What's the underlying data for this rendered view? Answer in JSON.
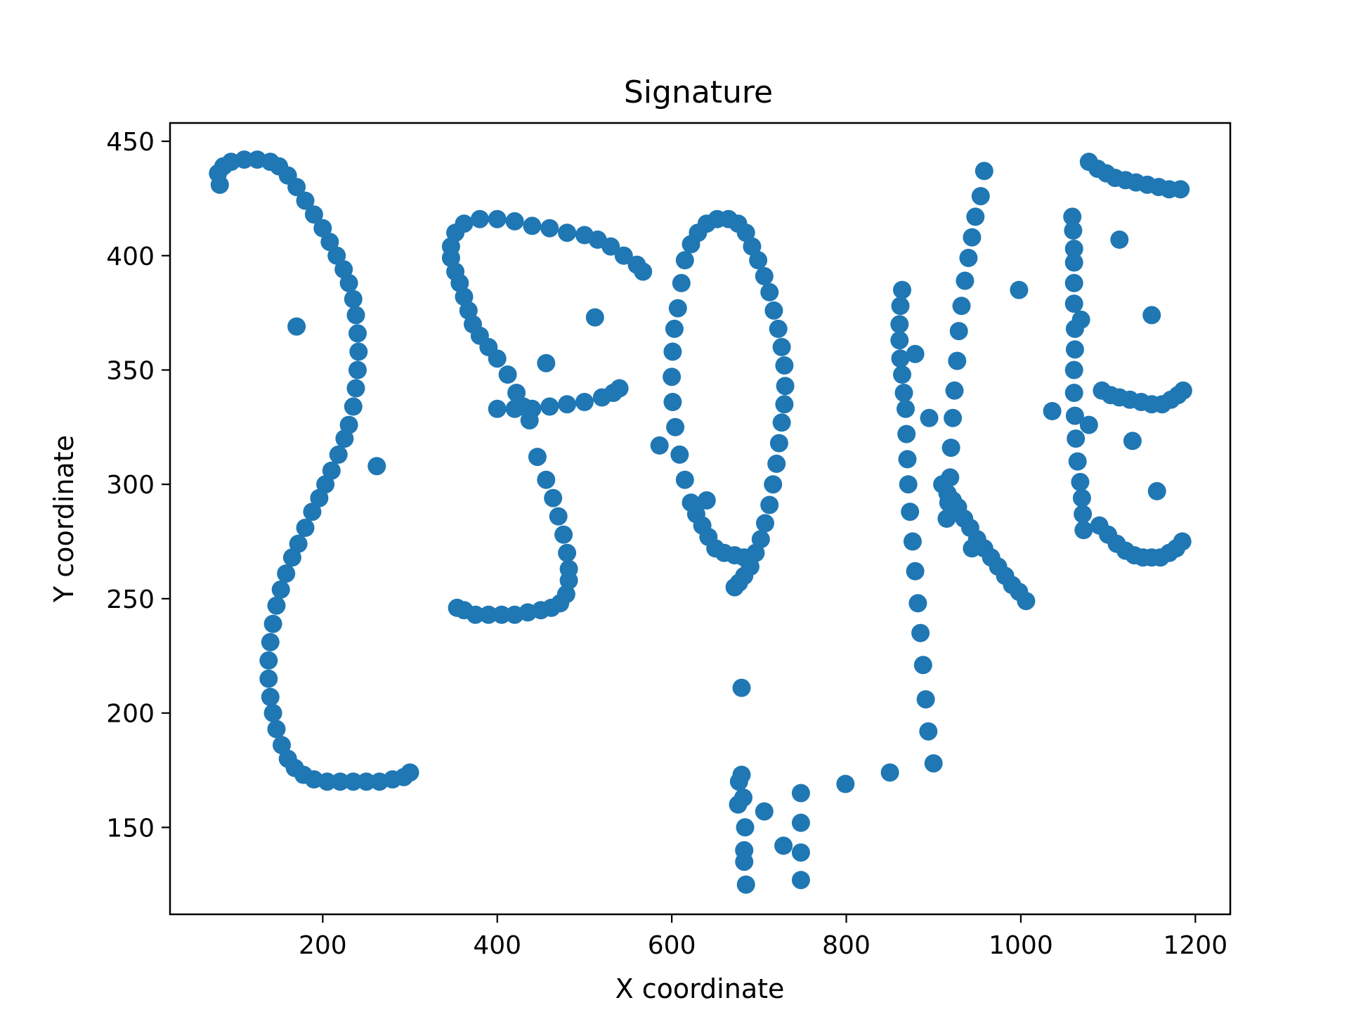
{
  "chart_data": {
    "type": "scatter",
    "title": "Signature",
    "xlabel": "X coordinate",
    "ylabel": "Y coordinate",
    "xlim": [
      25,
      1240
    ],
    "ylim": [
      112,
      458
    ],
    "xticks": [
      200,
      400,
      600,
      800,
      1000,
      1200
    ],
    "yticks": [
      150,
      200,
      250,
      300,
      350,
      400,
      450
    ],
    "grid": false,
    "legend": "none",
    "marker_color": "#1f77b4",
    "series": [
      {
        "points": [
          [
            82,
            431
          ],
          [
            80,
            436
          ],
          [
            86,
            439
          ],
          [
            95,
            441
          ],
          [
            110,
            442
          ],
          [
            125,
            442
          ],
          [
            140,
            441
          ],
          [
            150,
            439
          ],
          [
            160,
            435
          ],
          [
            170,
            430
          ],
          [
            180,
            424
          ],
          [
            190,
            418
          ],
          [
            200,
            412
          ],
          [
            208,
            406
          ],
          [
            216,
            400
          ],
          [
            224,
            394
          ],
          [
            230,
            388
          ],
          [
            235,
            381
          ],
          [
            238,
            374
          ],
          [
            240,
            366
          ],
          [
            241,
            358
          ],
          [
            240,
            350
          ],
          [
            238,
            342
          ],
          [
            235,
            334
          ],
          [
            230,
            326
          ],
          [
            225,
            320
          ],
          [
            218,
            313
          ],
          [
            210,
            306
          ],
          [
            203,
            300
          ],
          [
            196,
            294
          ],
          [
            188,
            288
          ],
          [
            180,
            281
          ],
          [
            172,
            274
          ],
          [
            165,
            268
          ],
          [
            158,
            261
          ],
          [
            152,
            254
          ],
          [
            147,
            247
          ],
          [
            143,
            239
          ],
          [
            140,
            231
          ],
          [
            138,
            223
          ],
          [
            138,
            215
          ],
          [
            140,
            207
          ],
          [
            143,
            200
          ],
          [
            147,
            193
          ],
          [
            153,
            186
          ],
          [
            160,
            180
          ],
          [
            168,
            176
          ],
          [
            178,
            173
          ],
          [
            190,
            171
          ],
          [
            205,
            170
          ],
          [
            220,
            170
          ],
          [
            235,
            170
          ],
          [
            250,
            170
          ],
          [
            265,
            170
          ],
          [
            280,
            171
          ],
          [
            293,
            172
          ],
          [
            300,
            174
          ],
          [
            170,
            369
          ],
          [
            262,
            308
          ],
          [
            347,
            404
          ],
          [
            352,
            410
          ],
          [
            362,
            414
          ],
          [
            380,
            416
          ],
          [
            400,
            416
          ],
          [
            420,
            415
          ],
          [
            440,
            413
          ],
          [
            460,
            412
          ],
          [
            480,
            410
          ],
          [
            500,
            409
          ],
          [
            515,
            407
          ],
          [
            530,
            404
          ],
          [
            545,
            400
          ],
          [
            560,
            396
          ],
          [
            567,
            393
          ],
          [
            347,
            399
          ],
          [
            352,
            393
          ],
          [
            357,
            388
          ],
          [
            362,
            382
          ],
          [
            367,
            376
          ],
          [
            372,
            370
          ],
          [
            380,
            365
          ],
          [
            390,
            360
          ],
          [
            400,
            355
          ],
          [
            412,
            348
          ],
          [
            422,
            340
          ],
          [
            430,
            334
          ],
          [
            437,
            328
          ],
          [
            400,
            333
          ],
          [
            420,
            333
          ],
          [
            440,
            333
          ],
          [
            460,
            334
          ],
          [
            480,
            335
          ],
          [
            500,
            336
          ],
          [
            520,
            338
          ],
          [
            533,
            340
          ],
          [
            540,
            342
          ],
          [
            456,
            353
          ],
          [
            512,
            373
          ],
          [
            446,
            312
          ],
          [
            456,
            302
          ],
          [
            464,
            294
          ],
          [
            470,
            286
          ],
          [
            476,
            278
          ],
          [
            480,
            270
          ],
          [
            482,
            263
          ],
          [
            482,
            258
          ],
          [
            479,
            252
          ],
          [
            472,
            248
          ],
          [
            462,
            246
          ],
          [
            450,
            245
          ],
          [
            435,
            244
          ],
          [
            420,
            243
          ],
          [
            405,
            243
          ],
          [
            390,
            243
          ],
          [
            375,
            243
          ],
          [
            362,
            245
          ],
          [
            354,
            246
          ],
          [
            586,
            317
          ],
          [
            607,
            377
          ],
          [
            611,
            388
          ],
          [
            615,
            398
          ],
          [
            622,
            405
          ],
          [
            630,
            410
          ],
          [
            640,
            414
          ],
          [
            652,
            416
          ],
          [
            665,
            416
          ],
          [
            676,
            414
          ],
          [
            685,
            410
          ],
          [
            692,
            404
          ],
          [
            699,
            398
          ],
          [
            706,
            391
          ],
          [
            712,
            384
          ],
          [
            717,
            376
          ],
          [
            722,
            368
          ],
          [
            726,
            360
          ],
          [
            729,
            352
          ],
          [
            730,
            343
          ],
          [
            729,
            335
          ],
          [
            726,
            327
          ],
          [
            723,
            318
          ],
          [
            720,
            309
          ],
          [
            716,
            300
          ],
          [
            712,
            291
          ],
          [
            707,
            283
          ],
          [
            702,
            276
          ],
          [
            696,
            270
          ],
          [
            690,
            264
          ],
          [
            683,
            260
          ],
          [
            677,
            257
          ],
          [
            672,
            255
          ],
          [
            603,
            368
          ],
          [
            601,
            358
          ],
          [
            600,
            347
          ],
          [
            601,
            336
          ],
          [
            604,
            325
          ],
          [
            609,
            313
          ],
          [
            615,
            302
          ],
          [
            622,
            292
          ],
          [
            628,
            287
          ],
          [
            635,
            282
          ],
          [
            642,
            277
          ],
          [
            650,
            272
          ],
          [
            660,
            270
          ],
          [
            672,
            269
          ],
          [
            683,
            268
          ],
          [
            690,
            268
          ],
          [
            640,
            293
          ],
          [
            680,
            211
          ],
          [
            676,
            160
          ],
          [
            677,
            170
          ],
          [
            680,
            173
          ],
          [
            682,
            163
          ],
          [
            684,
            150
          ],
          [
            683,
            140
          ],
          [
            683,
            135
          ],
          [
            685,
            125
          ],
          [
            706,
            157
          ],
          [
            728,
            142
          ],
          [
            748,
            165
          ],
          [
            748,
            152
          ],
          [
            748,
            139
          ],
          [
            748,
            127
          ],
          [
            799,
            169
          ],
          [
            850,
            174
          ],
          [
            900,
            178
          ],
          [
            864,
            385
          ],
          [
            862,
            378
          ],
          [
            861,
            370
          ],
          [
            861,
            363
          ],
          [
            862,
            355
          ],
          [
            864,
            348
          ],
          [
            866,
            340
          ],
          [
            868,
            333
          ],
          [
            869,
            322
          ],
          [
            870,
            311
          ],
          [
            871,
            300
          ],
          [
            873,
            288
          ],
          [
            876,
            275
          ],
          [
            879,
            262
          ],
          [
            882,
            248
          ],
          [
            885,
            235
          ],
          [
            888,
            221
          ],
          [
            891,
            206
          ],
          [
            894,
            192
          ],
          [
            879,
            357
          ],
          [
            895,
            329
          ],
          [
            958,
            437
          ],
          [
            954,
            426
          ],
          [
            948,
            417
          ],
          [
            944,
            408
          ],
          [
            940,
            399
          ],
          [
            936,
            389
          ],
          [
            932,
            378
          ],
          [
            929,
            367
          ],
          [
            927,
            354
          ],
          [
            924,
            341
          ],
          [
            922,
            329
          ],
          [
            920,
            316
          ],
          [
            919,
            303
          ],
          [
            917,
            292
          ],
          [
            915,
            285
          ],
          [
            910,
            300
          ],
          [
            916,
            296
          ],
          [
            922,
            293
          ],
          [
            928,
            290
          ],
          [
            935,
            285
          ],
          [
            942,
            281
          ],
          [
            950,
            276
          ],
          [
            958,
            272
          ],
          [
            966,
            268
          ],
          [
            974,
            264
          ],
          [
            982,
            260
          ],
          [
            990,
            256
          ],
          [
            998,
            253
          ],
          [
            1006,
            249
          ],
          [
            944,
            272
          ],
          [
            998,
            385
          ],
          [
            1036,
            332
          ],
          [
            1059,
            417
          ],
          [
            1060,
            411
          ],
          [
            1061,
            403
          ],
          [
            1061,
            397
          ],
          [
            1061,
            388
          ],
          [
            1061,
            379
          ],
          [
            1062,
            368
          ],
          [
            1062,
            359
          ],
          [
            1061,
            350
          ],
          [
            1061,
            340
          ],
          [
            1062,
            330
          ],
          [
            1063,
            320
          ],
          [
            1065,
            310
          ],
          [
            1068,
            301
          ],
          [
            1070,
            294
          ],
          [
            1071,
            287
          ],
          [
            1072,
            280
          ],
          [
            1069,
            372
          ],
          [
            1078,
            326
          ],
          [
            1078,
            441
          ],
          [
            1088,
            438
          ],
          [
            1098,
            436
          ],
          [
            1108,
            434
          ],
          [
            1120,
            433
          ],
          [
            1132,
            432
          ],
          [
            1145,
            431
          ],
          [
            1158,
            430
          ],
          [
            1170,
            429
          ],
          [
            1183,
            429
          ],
          [
            1113,
            407
          ],
          [
            1150,
            374
          ],
          [
            1093,
            341
          ],
          [
            1103,
            339
          ],
          [
            1113,
            338
          ],
          [
            1125,
            337
          ],
          [
            1138,
            336
          ],
          [
            1150,
            335
          ],
          [
            1162,
            335
          ],
          [
            1172,
            337
          ],
          [
            1180,
            339
          ],
          [
            1186,
            341
          ],
          [
            1128,
            319
          ],
          [
            1156,
            297
          ],
          [
            1090,
            282
          ],
          [
            1100,
            278
          ],
          [
            1110,
            274
          ],
          [
            1120,
            271
          ],
          [
            1130,
            269
          ],
          [
            1140,
            268
          ],
          [
            1150,
            268
          ],
          [
            1160,
            268
          ],
          [
            1170,
            270
          ],
          [
            1178,
            272
          ],
          [
            1185,
            275
          ]
        ]
      }
    ]
  }
}
